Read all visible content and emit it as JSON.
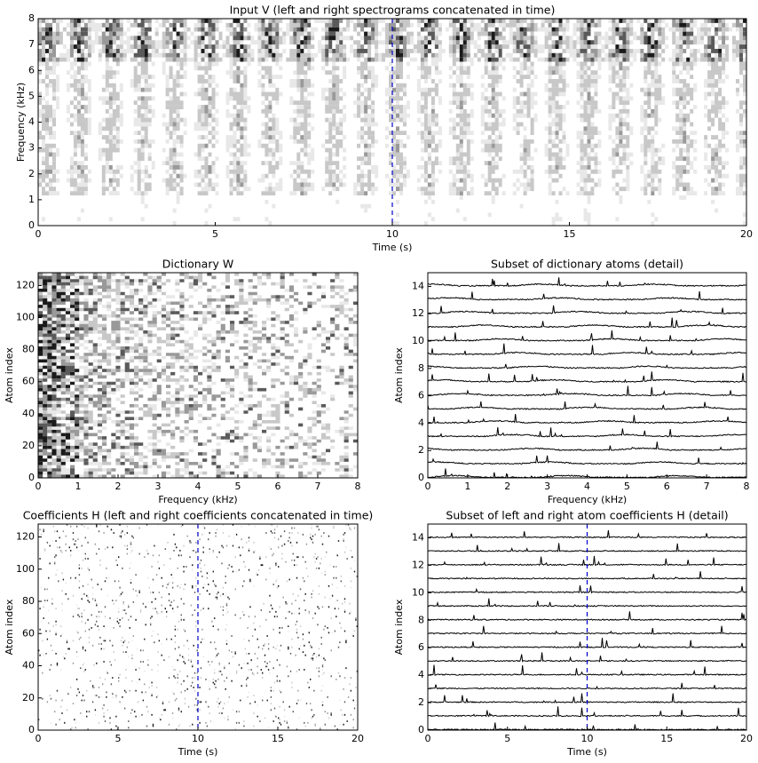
{
  "chart_data": [
    {
      "type": "heatmap",
      "title": "Input V (left and right spectrograms concatenated in time)",
      "xlabel": "Time (s)",
      "ylabel": "Frequency (kHz)",
      "xlim": [
        0,
        20
      ],
      "xticks": [
        0,
        5,
        10,
        15,
        20
      ],
      "ylim": [
        0,
        8
      ],
      "yticks": [
        0,
        1,
        2,
        3,
        4,
        5,
        6,
        7,
        8
      ],
      "vline": 10,
      "vline_color": "#0000cc"
    },
    {
      "type": "heatmap",
      "title": "Dictionary W",
      "xlabel": "Frequency (kHz)",
      "ylabel": "Atom index",
      "xlim": [
        0,
        8
      ],
      "xticks": [
        0,
        1,
        2,
        3,
        4,
        5,
        6,
        7,
        8
      ],
      "ylim": [
        0,
        128
      ],
      "yticks": [
        0,
        20,
        40,
        60,
        80,
        100,
        120
      ]
    },
    {
      "type": "line",
      "title": "Subset of dictionary atoms (detail)",
      "xlabel": "Frequency (kHz)",
      "ylabel": "Atom index",
      "xlim": [
        0,
        8
      ],
      "xticks": [
        0,
        1,
        2,
        3,
        4,
        5,
        6,
        7,
        8
      ],
      "ylim": [
        0,
        15
      ],
      "yticks": [
        0,
        2,
        4,
        6,
        8,
        10,
        12,
        14
      ]
    },
    {
      "type": "sparse",
      "title": "Coefficients H (left and right coefficients concatenated in time)",
      "xlabel": "Time (s)",
      "ylabel": "Atom index",
      "xlim": [
        0,
        20
      ],
      "xticks": [
        0,
        5,
        10,
        15,
        20
      ],
      "ylim": [
        0,
        128
      ],
      "yticks": [
        0,
        20,
        40,
        60,
        80,
        100,
        120
      ],
      "vline": 10,
      "vline_color": "#0000cc"
    },
    {
      "type": "line",
      "title": "Subset of left and right atom coefficients H (detail)",
      "xlabel": "Time (s)",
      "ylabel": "Atom index",
      "xlim": [
        0,
        20
      ],
      "xticks": [
        0,
        5,
        10,
        15,
        20
      ],
      "ylim": [
        0,
        15
      ],
      "yticks": [
        0,
        2,
        4,
        6,
        8,
        10,
        12,
        14
      ],
      "vline": 10,
      "vline_color": "#0000cc"
    }
  ]
}
